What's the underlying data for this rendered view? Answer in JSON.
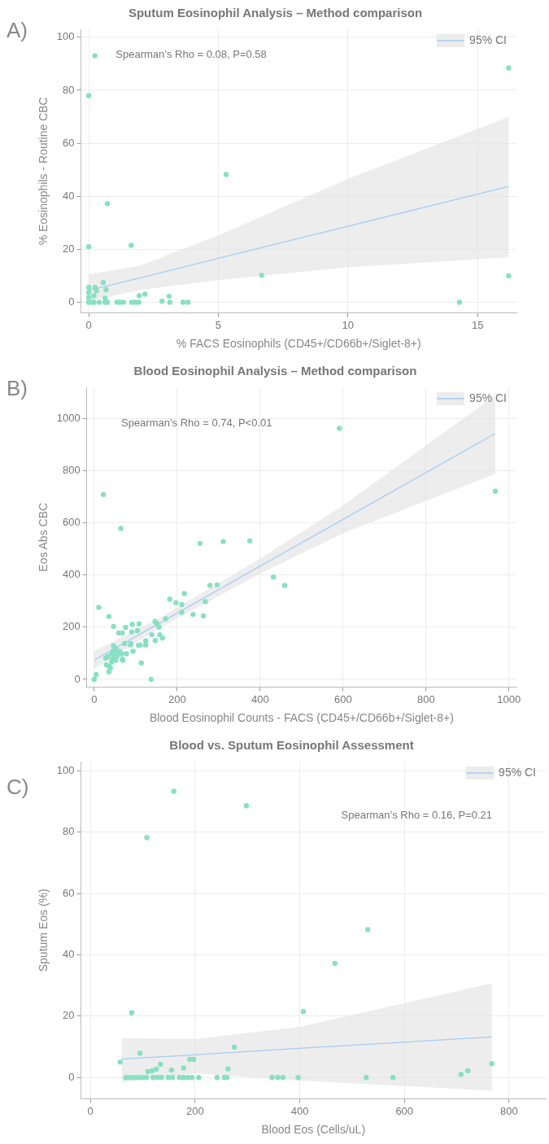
{
  "chart_data": [
    {
      "type": "scatter",
      "title": "Sputum Eosinophil Analysis – Method comparison",
      "xlabel": "% FACS Eosinophils (CD45+/CD66b+/Siglet-8+)",
      "ylabel": "% Eosinophils - Routine CBC",
      "annotations": [
        "A)",
        "Spearman’s Rho = 0.08, P=0.58"
      ],
      "xlim": [
        -0.3,
        16.5
      ],
      "xticks": [
        0,
        5,
        10,
        15
      ],
      "ylim": [
        -4,
        103
      ],
      "yticks": [
        0,
        20,
        40,
        60,
        80,
        100
      ],
      "grid": true,
      "legend": "top right",
      "marker": "circle",
      "series": [
        {
          "color": "#88e0c2",
          "x": [
            0,
            0,
            0,
            0,
            0.1,
            0.2,
            0.2,
            0.25,
            0.3,
            0.41,
            0.56,
            0.63,
            0.63,
            0.67,
            0.72,
            1.09,
            1.2,
            1.34,
            1.66,
            1.8,
            1.93,
            1.95,
            2.17,
            2.83,
            3.1,
            3.13,
            3.64,
            3.83,
            0.24,
            0,
            16.2,
            5.3,
            0.72,
            0,
            1.64,
            6.67,
            16.2,
            14.3
          ],
          "values": [
            0,
            1.8,
            3.7,
            5.6,
            0,
            0,
            2.5,
            5.6,
            4.3,
            0,
            7.5,
            0,
            1.6,
            4.8,
            0,
            0,
            0,
            0,
            0,
            0,
            0,
            2.5,
            3.1,
            0.4,
            2.3,
            0,
            0,
            0,
            93,
            78,
            88.4,
            48.2,
            37.2,
            21,
            21.5,
            10.2,
            10,
            0
          ]
        },
        {
          "type": "line",
          "name": "95% CI",
          "marker": "none",
          "color": "#a8cbf2",
          "x": [
            0,
            2,
            5,
            10,
            16.2
          ],
          "values": [
            4.5,
            9.3,
            16.6,
            28.7,
            43.7
          ],
          "lower": [
            0.5,
            4.7,
            8.4,
            13.2,
            17
          ],
          "upper": [
            10.5,
            13.9,
            25.3,
            46.6,
            69.9
          ]
        }
      ]
    },
    {
      "type": "scatter",
      "title": "Blood Eosinophil Analysis – Method comparison",
      "xlabel": "Blood Eosinophil Counts - FACS (CD45+/CD66b+/Siglet-8+)",
      "ylabel": "Eos Abs CBC",
      "annotations": [
        "B)",
        "Spearman’s Rho = 0.74, P<0.01"
      ],
      "xlim": [
        -18,
        1018
      ],
      "xticks": [
        0,
        200,
        400,
        600,
        800,
        1000
      ],
      "ylim": [
        -30,
        1119
      ],
      "yticks": [
        0,
        200,
        400,
        600,
        800,
        1000
      ],
      "grid": true,
      "legend": "top right",
      "marker": "circle",
      "series": [
        {
          "color": "#88e0c2",
          "x": [
            591,
            967,
            22,
            64,
            255,
            311,
            375,
            432,
            459,
            11,
            35.5,
            46.5,
            59,
            67.7,
            75.5,
            91.6,
            108,
            90,
            104,
            146.5,
            151.6,
            156,
            172,
            182,
            197,
            211,
            217,
            211,
            238,
            263,
            268,
            279,
            296,
            138.7,
            147,
            158,
            164.5,
            124,
            124,
            106.5,
            111,
            88,
            87,
            73,
            93.5,
            77.4,
            66,
            69,
            113.5,
            46.5,
            51.6,
            46.5,
            53.6,
            42,
            48.4,
            55,
            43.3,
            51.6,
            32,
            27.7,
            29,
            35.5,
            38.7,
            35.5,
            42,
            61,
            67.7,
            0,
            4.5,
            137
          ],
          "values": [
            962,
            721,
            708,
            578,
            521,
            528,
            531,
            392,
            360,
            276,
            241,
            203,
            178,
            178,
            199,
            211,
            213,
            182,
            187,
            222,
            213,
            200,
            232,
            307,
            294,
            287,
            329,
            257,
            249,
            243,
            298,
            360,
            362,
            171,
            149,
            171,
            158,
            148,
            132,
            131,
            132,
            137,
            132,
            137,
            108,
            98,
            98,
            73,
            63,
            129,
            119,
            110,
            106,
            98,
            87,
            89,
            77,
            73,
            87,
            82,
            56,
            50,
            43,
            29,
            66,
            108,
            77,
            0,
            19,
            0
          ]
        },
        {
          "type": "line",
          "name": "95% CI",
          "marker": "none",
          "color": "#a8cbf2",
          "x": [
            0,
            150,
            400,
            600,
            967
          ],
          "values": [
            74,
            209,
            434,
            613,
            942
          ],
          "lower": [
            40,
            190,
            405,
            560,
            787
          ],
          "upper": [
            108,
            228,
            463,
            666,
            1088
          ]
        }
      ]
    },
    {
      "type": "scatter",
      "title": "Blood vs. Sputum Eosinophil Assessment",
      "xlabel": "Blood Eos (Cells/uL)",
      "ylabel": "Sputum Eos (%)",
      "annotations": [
        "C)",
        "Spearman’s Rho = 0.16, P=0.21"
      ],
      "xlim": [
        -18,
        870
      ],
      "xticks": [
        0,
        200,
        400,
        600,
        800
      ],
      "ylim": [
        -7,
        103
      ],
      "yticks": [
        0,
        20,
        40,
        60,
        80,
        100
      ],
      "grid": true,
      "legend": "top right",
      "marker": "circle",
      "series": [
        {
          "color": "#88e0c2",
          "x": [
            159.5,
            298,
            108,
            530,
            467,
            79,
            407,
            275,
            95,
            57,
            767,
            721,
            708,
            527,
            578,
            397,
            347,
            358,
            368,
            242,
            256,
            261,
            263,
            190,
            197.6,
            110,
            118,
            126,
            134,
            155,
            178,
            68,
            76,
            84,
            92,
            99.5,
            107,
            120,
            128,
            136,
            149,
            157,
            170,
            178,
            186,
            194,
            207
          ],
          "values": [
            93.3,
            88.6,
            78.2,
            48.2,
            37.2,
            21.1,
            21.5,
            9.9,
            7.9,
            5,
            4.5,
            2.2,
            1,
            0,
            0,
            0,
            0,
            0,
            0,
            0,
            0,
            0,
            2.8,
            5.9,
            5.9,
            1.9,
            2.2,
            2.7,
            4.3,
            2.4,
            3.1,
            0,
            0,
            0,
            0,
            0,
            0,
            0,
            0,
            0,
            0,
            0,
            0,
            0,
            0,
            0,
            0
          ]
        },
        {
          "type": "line",
          "name": "95% CI",
          "marker": "none",
          "color": "#a8cbf2",
          "x": [
            60,
            200,
            400,
            767
          ],
          "values": [
            6,
            7.4,
            9.5,
            13.2
          ],
          "lower": [
            -1.6,
            1.3,
            -1,
            -4.3
          ],
          "upper": [
            12.8,
            12.5,
            16.5,
            30.7
          ]
        }
      ]
    }
  ]
}
